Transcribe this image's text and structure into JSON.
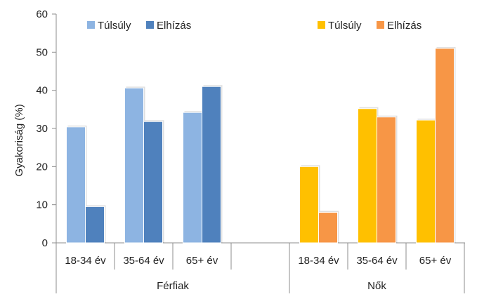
{
  "chart_data": {
    "type": "bar",
    "ylabel": "Gyakoriság (%)",
    "ylim": [
      0,
      60
    ],
    "yticks": [
      0,
      10,
      20,
      30,
      40,
      50,
      60
    ],
    "grid": false,
    "groups": [
      {
        "name": "Férfiak",
        "categories": [
          "18-34 év",
          "35-64 év",
          "65+ év"
        ],
        "series": [
          {
            "name": "Túlsúly",
            "color": "#8DB4E2",
            "values": [
              30.4,
              40.6,
              34.2
            ]
          },
          {
            "name": "Elhízás",
            "color": "#4F81BD",
            "values": [
              9.5,
              31.8,
              41.0
            ]
          }
        ]
      },
      {
        "name": "Nők",
        "categories": [
          "18-34 év",
          "35-64 év",
          "65+ év"
        ],
        "series": [
          {
            "name": "Túlsúly",
            "color": "#FFC000",
            "values": [
              20.0,
              35.2,
              32.2
            ]
          },
          {
            "name": "Elhízás",
            "color": "#F79646",
            "values": [
              8.0,
              33.0,
              51.0
            ]
          }
        ]
      }
    ]
  }
}
